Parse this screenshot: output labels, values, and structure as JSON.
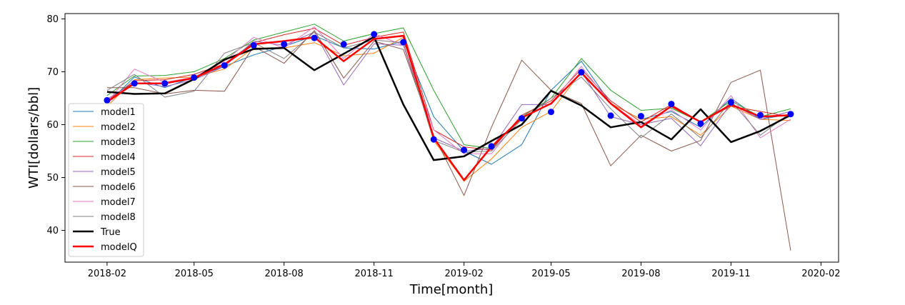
{
  "chart_data": {
    "type": "line",
    "title": "",
    "xlabel": "Time[month]",
    "ylabel": "WTI[dollars/bbl]",
    "xlim": [
      "2017-12-20",
      "2020-02-19"
    ],
    "ylim": [
      34,
      81
    ],
    "xticks": [
      {
        "date": "2018-02-01",
        "label": "2018-02"
      },
      {
        "date": "2018-05-01",
        "label": "2018-05"
      },
      {
        "date": "2018-08-01",
        "label": "2018-08"
      },
      {
        "date": "2018-11-01",
        "label": "2018-11"
      },
      {
        "date": "2019-02-01",
        "label": "2019-02"
      },
      {
        "date": "2019-05-01",
        "label": "2019-05"
      },
      {
        "date": "2019-08-01",
        "label": "2019-08"
      },
      {
        "date": "2019-11-01",
        "label": "2019-11"
      },
      {
        "date": "2020-02-01",
        "label": "2020-02"
      }
    ],
    "yticks": [
      40,
      50,
      60,
      70,
      80
    ],
    "legend_position": "lower-left",
    "grid": false,
    "x": [
      "2018-02-01",
      "2018-03-01",
      "2018-04-01",
      "2018-05-01",
      "2018-06-01",
      "2018-07-01",
      "2018-08-01",
      "2018-09-01",
      "2018-10-01",
      "2018-11-01",
      "2018-12-01",
      "2019-01-01",
      "2019-02-01",
      "2019-03-01",
      "2019-04-01",
      "2019-05-01",
      "2019-06-01",
      "2019-07-01",
      "2019-08-01",
      "2019-09-01",
      "2019-10-01",
      "2019-11-01",
      "2019-12-01",
      "2020-01-01"
    ],
    "series": [
      {
        "name": "model1",
        "color": "#1f77b4",
        "width": 1,
        "values": [
          64.0,
          69.0,
          67.0,
          69.0,
          71.0,
          73.2,
          74.8,
          76.8,
          74.5,
          74.3,
          75.8,
          61.5,
          55.0,
          52.5,
          56.2,
          66.5,
          72.0,
          64.0,
          61.0,
          62.5,
          59.5,
          65.0,
          61.0,
          62.0
        ]
      },
      {
        "name": "model2",
        "color": "#ff7f0e",
        "width": 1,
        "values": [
          63.5,
          68.5,
          68.8,
          69.0,
          70.5,
          74.5,
          74.5,
          75.5,
          73.0,
          73.5,
          76.5,
          57.0,
          49.3,
          53.5,
          59.5,
          62.5,
          70.0,
          64.0,
          61.0,
          61.5,
          58.0,
          63.5,
          61.0,
          60.8
        ]
      },
      {
        "name": "model3",
        "color": "#2ca02c",
        "width": 1,
        "values": [
          65.5,
          69.2,
          69.3,
          70.0,
          72.5,
          76.0,
          77.5,
          79.0,
          75.8,
          77.2,
          78.3,
          66.5,
          56.2,
          55.5,
          61.5,
          65.0,
          72.5,
          66.5,
          62.7,
          63.1,
          60.5,
          64.5,
          61.5,
          63.0
        ]
      },
      {
        "name": "model4",
        "color": "#d62728",
        "width": 1,
        "values": [
          64.5,
          68.3,
          68.5,
          69.5,
          71.5,
          75.5,
          77.0,
          78.2,
          75.0,
          76.5,
          77.5,
          59.0,
          55.8,
          55.2,
          61.8,
          64.5,
          70.5,
          64.5,
          60.5,
          63.8,
          60.5,
          63.5,
          62.5,
          61.5
        ]
      },
      {
        "name": "model5",
        "color": "#9467bd",
        "width": 1,
        "values": [
          64.8,
          68.0,
          67.2,
          68.5,
          71.0,
          75.8,
          75.0,
          77.5,
          67.5,
          75.3,
          75.0,
          57.5,
          55.0,
          55.5,
          63.8,
          63.8,
          70.0,
          61.5,
          60.0,
          61.2,
          56.0,
          64.0,
          61.0,
          62.5
        ]
      },
      {
        "name": "model6",
        "color": "#8c564b",
        "width": 1,
        "values": [
          67.0,
          67.0,
          65.8,
          66.5,
          66.3,
          74.8,
          71.6,
          77.8,
          68.8,
          75.8,
          74.2,
          58.0,
          46.6,
          59.5,
          72.2,
          66.5,
          64.0,
          52.2,
          58.0,
          55.0,
          57.0,
          68.0,
          70.3,
          36.2
        ]
      },
      {
        "name": "model7",
        "color": "#e377c2",
        "width": 1,
        "values": [
          64.2,
          70.5,
          68.0,
          69.0,
          72.0,
          76.5,
          74.5,
          78.5,
          72.5,
          77.2,
          75.0,
          59.0,
          54.5,
          54.5,
          61.5,
          64.0,
          71.0,
          64.0,
          60.0,
          62.8,
          59.0,
          65.5,
          57.5,
          61.0
        ]
      },
      {
        "name": "model8",
        "color": "#7f7f7f",
        "width": 1,
        "values": [
          66.5,
          69.5,
          65.2,
          66.3,
          73.5,
          75.5,
          72.5,
          77.5,
          74.5,
          76.0,
          75.5,
          57.0,
          54.8,
          55.0,
          61.0,
          65.0,
          69.0,
          63.0,
          57.5,
          62.0,
          57.5,
          64.5,
          58.0,
          62.3
        ]
      },
      {
        "name": "True",
        "color": "#000000",
        "width": 2.5,
        "values": [
          66.2,
          65.8,
          65.9,
          68.6,
          72.3,
          74.3,
          74.5,
          70.3,
          73.4,
          76.6,
          63.8,
          53.3,
          54.0,
          56.9,
          60.0,
          66.4,
          63.6,
          59.5,
          60.5,
          57.2,
          62.9,
          56.7,
          58.8,
          61.8
        ]
      },
      {
        "name": "modelQ",
        "color": "#ff0000",
        "width": 2.5,
        "values": [
          64.3,
          67.8,
          67.8,
          68.8,
          71.4,
          75.2,
          75.8,
          76.5,
          72.0,
          76.2,
          76.8,
          57.5,
          49.5,
          55.8,
          61.3,
          64.0,
          69.8,
          64.0,
          59.5,
          63.5,
          60.5,
          63.8,
          61.5,
          61.8
        ]
      }
    ],
    "points": {
      "name": "",
      "color": "#0000ff",
      "values": [
        64.6,
        67.8,
        67.8,
        68.9,
        71.2,
        75.0,
        75.2,
        76.4,
        75.2,
        77.1,
        75.6,
        57.2,
        55.2,
        55.9,
        61.2,
        62.4,
        69.9,
        61.7,
        61.6,
        63.9,
        60.2,
        64.2,
        61.8,
        62.0
      ]
    }
  }
}
